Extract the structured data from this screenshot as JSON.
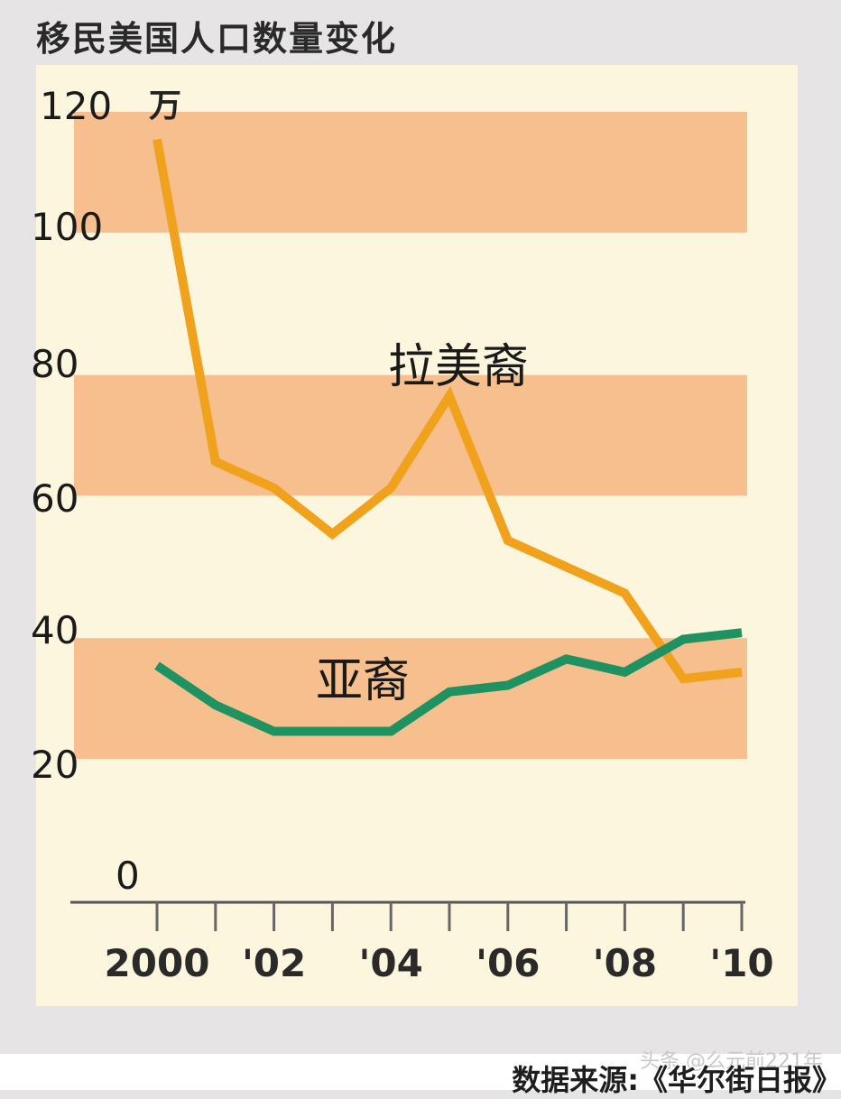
{
  "title": "移民美国人口数量变化",
  "unit": "万",
  "source": "数据来源:《华尔街日报》",
  "watermark": "头条 @么元前221年",
  "colors": {
    "latino": "#f0a21c",
    "asian": "#1e9361",
    "band": "#f7bf8e",
    "panel": "#fbf6dd"
  },
  "chart_data": {
    "type": "line",
    "x": [
      "2000",
      "2001",
      "2002",
      "2003",
      "2004",
      "2005",
      "2006",
      "2007",
      "2008",
      "2009",
      "2010"
    ],
    "xtick_labels": [
      "2000",
      "'02",
      "'04",
      "'06",
      "'08",
      "'10"
    ],
    "ytick_labels": [
      "0",
      "20",
      "40",
      "60",
      "80",
      "100",
      "120"
    ],
    "ylim": [
      0,
      120
    ],
    "series": [
      {
        "name": "拉美裔",
        "values": [
          115,
          66,
          62,
          55,
          62,
          76,
          54,
          50,
          46,
          33,
          34
        ]
      },
      {
        "name": "亚裔",
        "values": [
          35,
          29,
          25,
          25,
          25,
          31,
          32,
          36,
          34,
          39,
          40
        ]
      }
    ]
  }
}
